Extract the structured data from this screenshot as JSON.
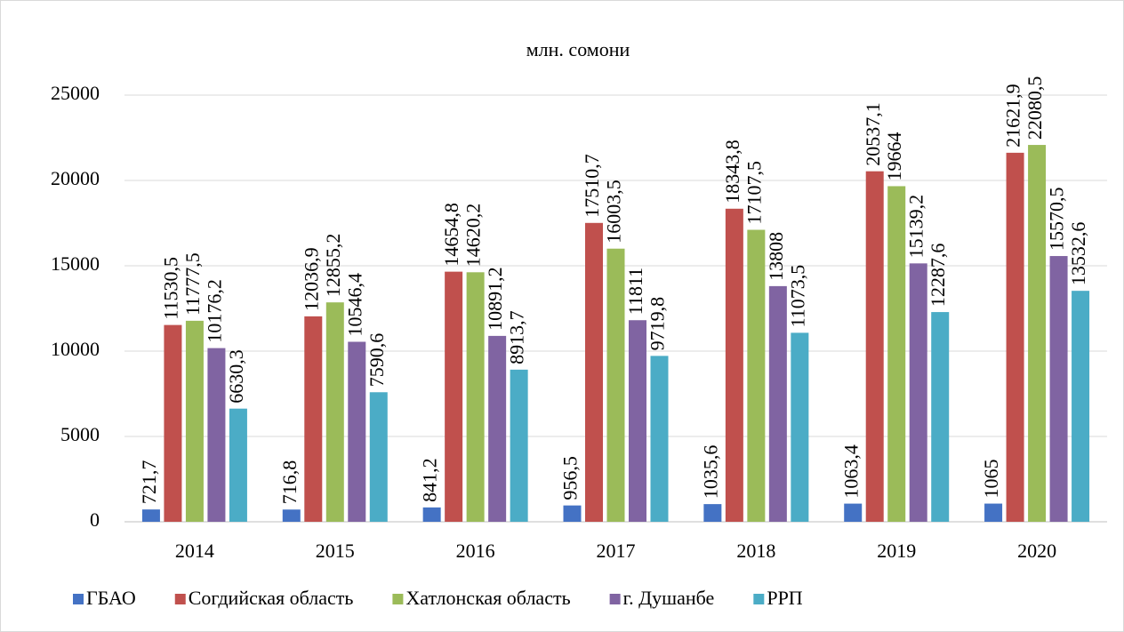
{
  "chart_data": {
    "type": "bar",
    "title": "млн. сомони",
    "categories": [
      "2014",
      "2015",
      "2016",
      "2017",
      "2018",
      "2019",
      "2020"
    ],
    "series": [
      {
        "name": "ГБАО",
        "color": "#4472c4",
        "values": [
          721.7,
          716.8,
          841.2,
          956.5,
          1035.6,
          1063.4,
          1065
        ],
        "value_labels": [
          "721,7",
          "716,8",
          "841,2",
          "956,5",
          "1035,6",
          "1063,4",
          "1065"
        ]
      },
      {
        "name": "Согдийская область",
        "color": "#c0504d",
        "values": [
          11530.5,
          12036.9,
          14654.8,
          17510.7,
          18343.8,
          20537.1,
          21621.9
        ],
        "value_labels": [
          "11530,5",
          "12036,9",
          "14654,8",
          "17510,7",
          "18343,8",
          "20537,1",
          "21621,9"
        ]
      },
      {
        "name": "Хатлонская область",
        "color": "#9bbb59",
        "values": [
          11777.5,
          12855.2,
          14620.2,
          16003.5,
          17107.5,
          19664,
          22080.5
        ],
        "value_labels": [
          "11777,5",
          "12855,2",
          "14620,2",
          "16003,5",
          "17107,5",
          "19664",
          "22080,5"
        ]
      },
      {
        "name": "г. Душанбе",
        "color": "#8064a2",
        "values": [
          10176.2,
          10546.4,
          10891.2,
          11811,
          13808,
          15139.2,
          15570.5
        ],
        "value_labels": [
          "10176,2",
          "10546,4",
          "10891,2",
          "11811",
          "13808",
          "15139,2",
          "15570,5"
        ]
      },
      {
        "name": "РРП",
        "color": "#4bacc6",
        "values": [
          6630.3,
          7590.6,
          8913.7,
          9719.8,
          11073.5,
          12287.6,
          13532.6
        ],
        "value_labels": [
          "6630,3",
          "7590,6",
          "8913,7",
          "9719,8",
          "11073,5",
          "12287,6",
          "13532,6"
        ]
      }
    ],
    "ylim": [
      0,
      25000
    ],
    "yticks": [
      0,
      5000,
      10000,
      15000,
      20000,
      25000
    ],
    "grid": true,
    "legend": "bottom"
  }
}
